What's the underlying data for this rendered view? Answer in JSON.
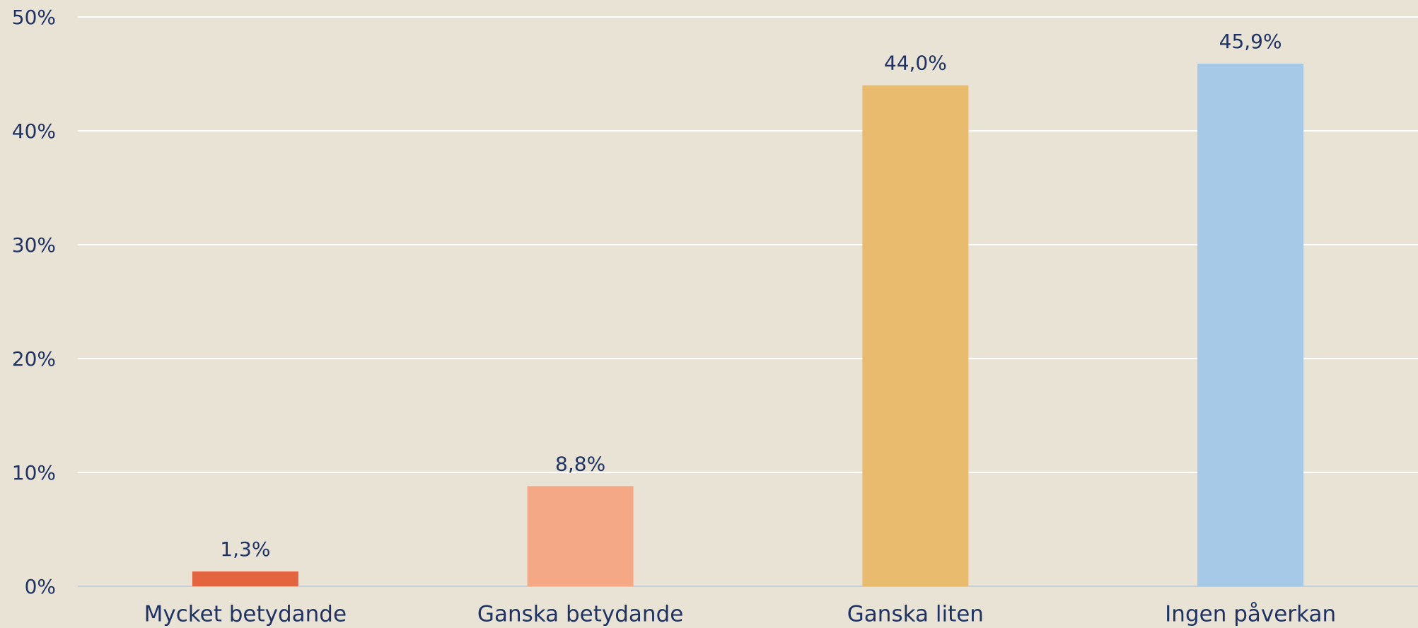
{
  "chart_data": {
    "type": "bar",
    "categories": [
      "Mycket betydande",
      "Ganska betydande",
      "Ganska liten",
      "Ingen påverkan"
    ],
    "values": [
      1.3,
      8.8,
      44.0,
      45.9
    ],
    "value_labels": [
      "1,3%",
      "8,8%",
      "44,0%",
      "45,9%"
    ],
    "colors": [
      "#e4643f",
      "#f4a886",
      "#e8bb6e",
      "#a7c9e8"
    ],
    "ylim": [
      0,
      50
    ],
    "yticks": [
      {
        "value": 0,
        "label": "0%"
      },
      {
        "value": 10,
        "label": "10%"
      },
      {
        "value": 20,
        "label": "20%"
      },
      {
        "value": 30,
        "label": "30%"
      },
      {
        "value": 40,
        "label": "40%"
      },
      {
        "value": 50,
        "label": "50%"
      }
    ],
    "grid": true
  }
}
